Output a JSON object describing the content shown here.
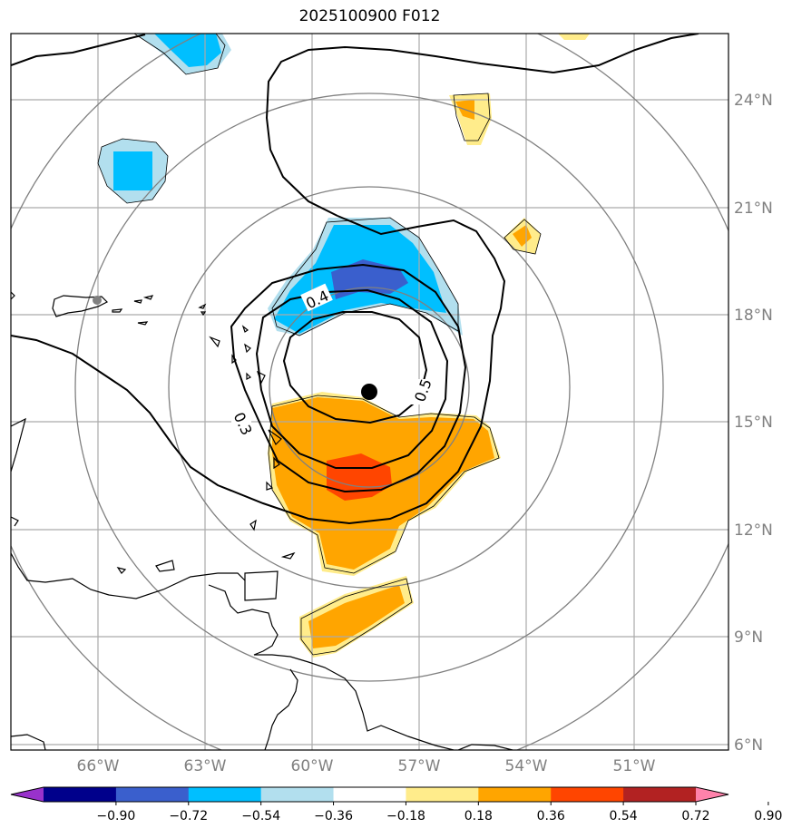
{
  "title": "2025100900 F012",
  "lon_labels": [
    "66°W",
    "63°W",
    "60°W",
    "57°W",
    "54°W",
    "51°W"
  ],
  "lat_labels": [
    "24°N",
    "21°N",
    "18°N",
    "15°N",
    "12°N",
    "9°N",
    "6°N"
  ],
  "contour_labels": [
    "0.4",
    "0.5",
    "0.3"
  ],
  "colorbar": {
    "ticks": [
      "−0.90",
      "−0.72",
      "−0.54",
      "−0.36",
      "−0.18",
      "0.18",
      "0.36",
      "0.54",
      "0.72",
      "0.90"
    ],
    "colors": [
      "#9932cc",
      "#00008b",
      "#3a5fcd",
      "#00bfff",
      "#b2dfee",
      "#ffffff",
      "#ffec8b",
      "#ffa500",
      "#ff4500",
      "#b22222",
      "#ff82ab"
    ]
  },
  "storm_center": {
    "lon": "58.5°W",
    "lat": "15.8°N"
  },
  "colors": {
    "grid": "#aaaaaa",
    "range_rings": "#808080",
    "coast": "#000000",
    "center_marker": "#000000"
  }
}
